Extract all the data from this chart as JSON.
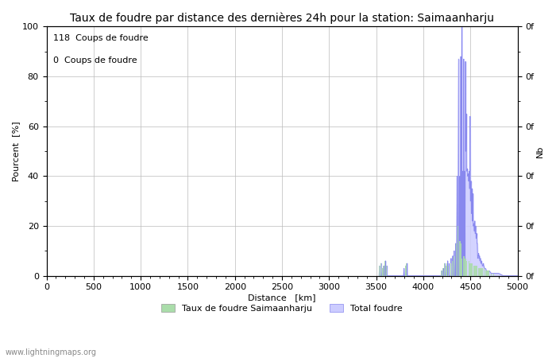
{
  "title": "Taux de foudre par distance des dernières 24h pour la station: Saimaanharju",
  "xlabel": "Distance   [km]",
  "ylabel_left": "Pourcent  [%]",
  "ylabel_right": "Nb",
  "legend_label1": "Taux de foudre Saimaanharju",
  "legend_label2": "Total foudre",
  "annotation1": "118  Coups de foudre",
  "annotation2": "0  Coups de foudre",
  "watermark": "www.lightningmaps.org",
  "xlim": [
    0,
    5000
  ],
  "ylim": [
    0,
    100
  ],
  "xticks": [
    0,
    500,
    1000,
    1500,
    2000,
    2500,
    3000,
    3500,
    4000,
    4500,
    5000
  ],
  "yticks_left": [
    0,
    20,
    40,
    60,
    80,
    100
  ],
  "bar_color_green": "#aaddaa",
  "bar_color_blue": "#ccccff",
  "line_color": "#8888ee",
  "background_color": "#ffffff",
  "grid_color": "#bbbbbb",
  "title_fontsize": 10,
  "tick_fontsize": 8,
  "label_fontsize": 8,
  "legend_fontsize": 8,
  "spike_data": [
    [
      3530,
      0
    ],
    [
      3535,
      4
    ],
    [
      3537,
      0
    ],
    [
      3548,
      0
    ],
    [
      3553,
      5
    ],
    [
      3555,
      0
    ],
    [
      3563,
      0
    ],
    [
      3568,
      3
    ],
    [
      3570,
      0
    ],
    [
      3578,
      0
    ],
    [
      3583,
      4
    ],
    [
      3585,
      0
    ],
    [
      3593,
      0
    ],
    [
      3598,
      6
    ],
    [
      3600,
      0
    ],
    [
      3608,
      0
    ],
    [
      3613,
      4
    ],
    [
      3615,
      0
    ],
    [
      3790,
      0
    ],
    [
      3795,
      3
    ],
    [
      3797,
      0
    ],
    [
      3808,
      0
    ],
    [
      3813,
      4
    ],
    [
      3815,
      0
    ],
    [
      3823,
      0
    ],
    [
      3828,
      5
    ],
    [
      3830,
      0
    ],
    [
      4190,
      0
    ],
    [
      4195,
      2
    ],
    [
      4197,
      0
    ],
    [
      4208,
      0
    ],
    [
      4213,
      3
    ],
    [
      4215,
      0
    ],
    [
      4223,
      0
    ],
    [
      4228,
      5
    ],
    [
      4230,
      0
    ],
    [
      4238,
      0
    ],
    [
      4243,
      4
    ],
    [
      4245,
      0
    ],
    [
      4253,
      0
    ],
    [
      4258,
      6
    ],
    [
      4260,
      0
    ],
    [
      4268,
      0
    ],
    [
      4273,
      5
    ],
    [
      4275,
      0
    ],
    [
      4290,
      0
    ],
    [
      4295,
      7
    ],
    [
      4297,
      0
    ],
    [
      4308,
      0
    ],
    [
      4313,
      8
    ],
    [
      4315,
      0
    ],
    [
      4323,
      0
    ],
    [
      4328,
      10
    ],
    [
      4330,
      0
    ],
    [
      4338,
      0
    ],
    [
      4343,
      13
    ],
    [
      4345,
      0
    ],
    [
      4353,
      0
    ],
    [
      4358,
      40
    ],
    [
      4360,
      0
    ],
    [
      4368,
      0
    ],
    [
      4373,
      85
    ],
    [
      4374,
      87
    ],
    [
      4376,
      0
    ],
    [
      4383,
      0
    ],
    [
      4388,
      40
    ],
    [
      4390,
      0
    ],
    [
      4393,
      0
    ],
    [
      4397,
      85
    ],
    [
      4398,
      88
    ],
    [
      4400,
      0
    ],
    [
      4403,
      0
    ],
    [
      4408,
      100
    ],
    [
      4409,
      100
    ],
    [
      4411,
      0
    ],
    [
      4413,
      0
    ],
    [
      4418,
      42
    ],
    [
      4420,
      0
    ],
    [
      4423,
      0
    ],
    [
      4428,
      86
    ],
    [
      4429,
      87
    ],
    [
      4431,
      0
    ],
    [
      4433,
      0
    ],
    [
      4438,
      42
    ],
    [
      4440,
      0
    ],
    [
      4443,
      0
    ],
    [
      4448,
      86
    ],
    [
      4450,
      50
    ],
    [
      4453,
      50
    ],
    [
      4458,
      65
    ],
    [
      4460,
      42
    ],
    [
      4463,
      42
    ],
    [
      4468,
      43
    ],
    [
      4470,
      40
    ],
    [
      4473,
      40
    ],
    [
      4478,
      41
    ],
    [
      4480,
      38
    ],
    [
      4483,
      38
    ],
    [
      4487,
      42
    ],
    [
      4490,
      35
    ],
    [
      4493,
      35
    ],
    [
      4497,
      64
    ],
    [
      4500,
      30
    ],
    [
      4503,
      30
    ],
    [
      4507,
      38
    ],
    [
      4510,
      25
    ],
    [
      4513,
      25
    ],
    [
      4517,
      35
    ],
    [
      4520,
      22
    ],
    [
      4523,
      22
    ],
    [
      4527,
      33
    ],
    [
      4530,
      20
    ],
    [
      4533,
      20
    ],
    [
      4537,
      21
    ],
    [
      4540,
      18
    ],
    [
      4543,
      18
    ],
    [
      4547,
      22
    ],
    [
      4550,
      17
    ],
    [
      4553,
      17
    ],
    [
      4557,
      20
    ],
    [
      4560,
      15
    ],
    [
      4563,
      15
    ],
    [
      4567,
      17
    ],
    [
      4570,
      13
    ],
    [
      4573,
      13
    ],
    [
      4577,
      7
    ],
    [
      4580,
      8
    ],
    [
      4583,
      8
    ],
    [
      4587,
      9
    ],
    [
      4590,
      7
    ],
    [
      4593,
      7
    ],
    [
      4597,
      8
    ],
    [
      4600,
      6
    ],
    [
      4603,
      6
    ],
    [
      4607,
      7
    ],
    [
      4610,
      5
    ],
    [
      4613,
      5
    ],
    [
      4617,
      6
    ],
    [
      4620,
      5
    ],
    [
      4623,
      5
    ],
    [
      4627,
      4
    ],
    [
      4630,
      4
    ],
    [
      4633,
      4
    ],
    [
      4637,
      5
    ],
    [
      4640,
      4
    ],
    [
      4643,
      4
    ],
    [
      4647,
      3
    ],
    [
      4650,
      3
    ],
    [
      4660,
      3
    ],
    [
      4670,
      2
    ],
    [
      4680,
      2
    ],
    [
      4690,
      2
    ],
    [
      4700,
      2
    ],
    [
      4720,
      1
    ],
    [
      4750,
      1
    ],
    [
      4800,
      1
    ],
    [
      4850,
      0
    ],
    [
      5000,
      0
    ]
  ],
  "green_bars": [
    [
      3530,
      4
    ],
    [
      3548,
      5
    ],
    [
      3563,
      3
    ],
    [
      3578,
      4
    ],
    [
      3593,
      6
    ],
    [
      3608,
      4
    ],
    [
      3790,
      3
    ],
    [
      3808,
      4
    ],
    [
      3823,
      5
    ],
    [
      4190,
      2
    ],
    [
      4208,
      3
    ],
    [
      4223,
      5
    ],
    [
      4238,
      4
    ],
    [
      4253,
      5
    ],
    [
      4268,
      4
    ],
    [
      4290,
      5
    ],
    [
      4308,
      6
    ],
    [
      4323,
      8
    ],
    [
      4338,
      10
    ],
    [
      4353,
      13
    ],
    [
      4368,
      20
    ],
    [
      4383,
      14
    ],
    [
      4393,
      14
    ],
    [
      4403,
      13
    ],
    [
      4413,
      7
    ],
    [
      4423,
      8
    ],
    [
      4433,
      8
    ],
    [
      4443,
      7
    ],
    [
      4453,
      7
    ],
    [
      4463,
      6
    ],
    [
      4473,
      6
    ],
    [
      4483,
      6
    ],
    [
      4493,
      5
    ],
    [
      4503,
      5
    ],
    [
      4513,
      5
    ],
    [
      4523,
      5
    ],
    [
      4533,
      4
    ],
    [
      4543,
      4
    ],
    [
      4553,
      4
    ],
    [
      4563,
      4
    ],
    [
      4573,
      4
    ],
    [
      4583,
      3
    ],
    [
      4593,
      3
    ],
    [
      4603,
      3
    ],
    [
      4613,
      3
    ],
    [
      4623,
      3
    ],
    [
      4633,
      3
    ],
    [
      4643,
      3
    ],
    [
      4660,
      2
    ],
    [
      4670,
      2
    ],
    [
      4680,
      2
    ],
    [
      4690,
      2
    ],
    [
      4700,
      2
    ],
    [
      4720,
      1
    ],
    [
      4750,
      1
    ]
  ]
}
